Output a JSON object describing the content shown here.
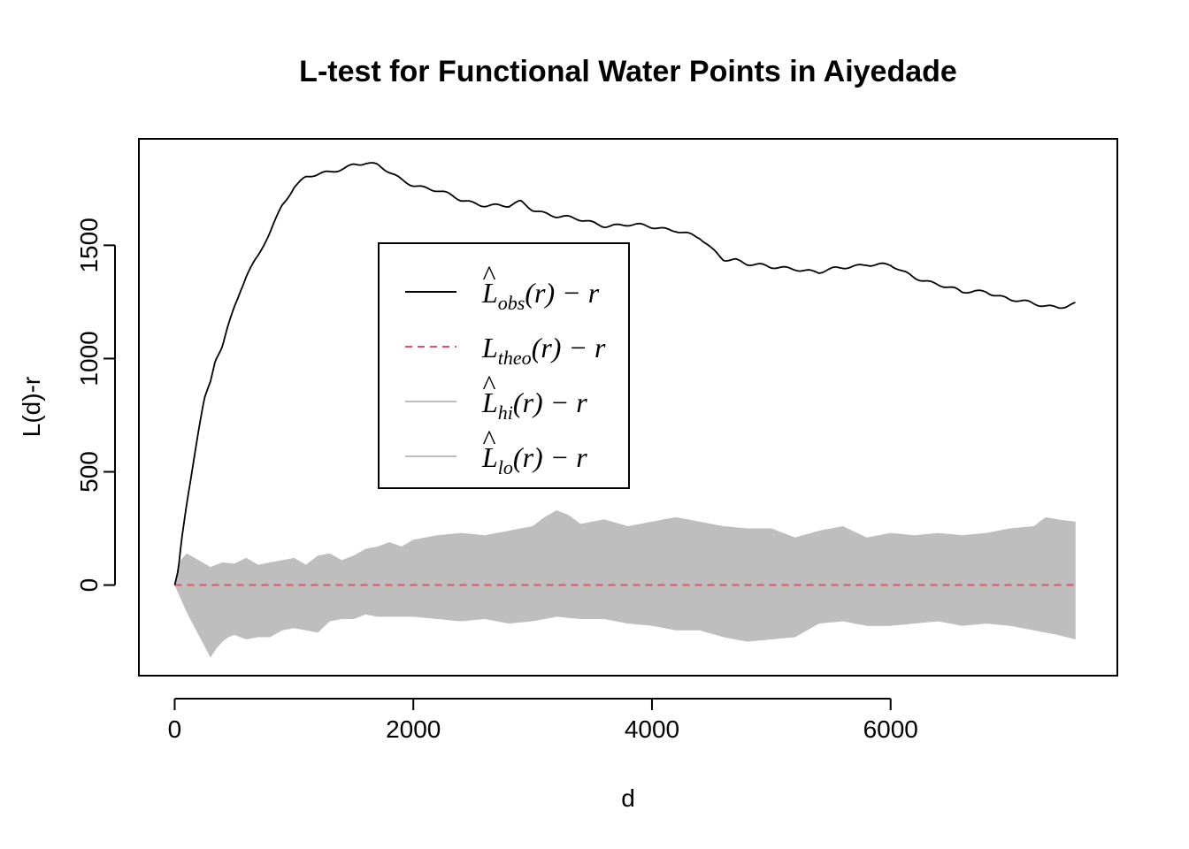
{
  "chart_data": {
    "type": "line",
    "title": "L-test for Functional Water Points in Aiyedade",
    "xlabel": "d",
    "ylabel": "L(d)-r",
    "xlim": [
      -300,
      7900
    ],
    "ylim": [
      -400,
      1970
    ],
    "x_ticks": [
      0,
      2000,
      4000,
      6000
    ],
    "x_tick_labels": [
      "0",
      "2000",
      "4000",
      "6000"
    ],
    "y_ticks": [
      0,
      500,
      1000,
      1500
    ],
    "y_tick_labels": [
      "0",
      "500",
      "1000",
      "1500"
    ],
    "grid": false,
    "legend_position": "upper-center",
    "colors": {
      "obs": "#000000",
      "theo": "#DF536B",
      "envelope": "#BEBEBE",
      "legend_band": "#BEBEBE"
    },
    "legend": [
      {
        "main": "L",
        "hat": "^",
        "sub": "obs",
        "rest": "(r) − r",
        "style": "solid",
        "color": "#000000"
      },
      {
        "main": "L",
        "hat": "",
        "sub": "theo",
        "rest": "(r) − r",
        "style": "dashed",
        "color": "#DF536B"
      },
      {
        "main": "L",
        "hat": "^",
        "sub": "hi",
        "rest": "(r) − r",
        "style": "solid",
        "color": "#BEBEBE"
      },
      {
        "main": "L",
        "hat": "^",
        "sub": "lo",
        "rest": "(r) − r",
        "style": "solid",
        "color": "#BEBEBE"
      }
    ],
    "series": [
      {
        "name": "obs",
        "x": [
          0,
          30,
          60,
          100,
          150,
          200,
          250,
          300,
          340,
          400,
          450,
          500,
          550,
          600,
          700,
          800,
          900,
          1000,
          1100,
          1200,
          1300,
          1400,
          1500,
          1600,
          1700,
          1800,
          1900,
          2000,
          2200,
          2400,
          2600,
          2800,
          2900,
          3000,
          3200,
          3400,
          3600,
          3800,
          4000,
          4200,
          4400,
          4500,
          4600,
          4700,
          4800,
          5000,
          5200,
          5400,
          5600,
          5800,
          6000,
          6100,
          6200,
          6400,
          6600,
          6800,
          7000,
          7200,
          7400,
          7550
        ],
        "y": [
          0,
          60,
          200,
          350,
          520,
          680,
          820,
          900,
          1000,
          1060,
          1150,
          1230,
          1300,
          1360,
          1450,
          1560,
          1680,
          1760,
          1800,
          1810,
          1820,
          1840,
          1860,
          1865,
          1850,
          1820,
          1790,
          1770,
          1740,
          1700,
          1680,
          1670,
          1690,
          1660,
          1630,
          1610,
          1590,
          1590,
          1580,
          1570,
          1530,
          1480,
          1440,
          1440,
          1420,
          1400,
          1400,
          1380,
          1400,
          1420,
          1410,
          1380,
          1360,
          1330,
          1290,
          1300,
          1260,
          1240,
          1230,
          1240
        ]
      },
      {
        "name": "theo",
        "x": [
          0,
          7550
        ],
        "y": [
          0,
          0
        ]
      },
      {
        "name": "hi",
        "x": [
          0,
          50,
          100,
          200,
          300,
          400,
          500,
          600,
          700,
          800,
          900,
          1000,
          1100,
          1200,
          1300,
          1400,
          1500,
          1600,
          1700,
          1800,
          1900,
          2000,
          2200,
          2400,
          2600,
          2800,
          3000,
          3100,
          3200,
          3300,
          3400,
          3600,
          3800,
          4000,
          4200,
          4400,
          4600,
          4800,
          5000,
          5200,
          5400,
          5600,
          5800,
          6000,
          6200,
          6400,
          6600,
          6800,
          7000,
          7200,
          7300,
          7400,
          7550
        ],
        "y": [
          0,
          110,
          140,
          110,
          80,
          100,
          95,
          120,
          90,
          100,
          110,
          120,
          90,
          130,
          140,
          110,
          130,
          160,
          170,
          190,
          170,
          200,
          220,
          230,
          220,
          240,
          260,
          300,
          330,
          310,
          270,
          290,
          260,
          280,
          300,
          280,
          260,
          250,
          250,
          210,
          240,
          260,
          210,
          230,
          220,
          230,
          220,
          230,
          250,
          260,
          300,
          290,
          280
        ]
      },
      {
        "name": "lo",
        "x": [
          0,
          50,
          100,
          150,
          200,
          250,
          300,
          350,
          400,
          450,
          500,
          600,
          700,
          800,
          900,
          1000,
          1100,
          1200,
          1300,
          1400,
          1500,
          1600,
          1700,
          1800,
          2000,
          2200,
          2400,
          2600,
          2800,
          3000,
          3200,
          3400,
          3600,
          3800,
          4000,
          4200,
          4400,
          4600,
          4800,
          5000,
          5200,
          5400,
          5600,
          5800,
          6000,
          6200,
          6400,
          6600,
          6800,
          7000,
          7200,
          7400,
          7550
        ],
        "y": [
          0,
          -60,
          -120,
          -170,
          -220,
          -270,
          -320,
          -280,
          -250,
          -230,
          -220,
          -240,
          -230,
          -230,
          -200,
          -190,
          -200,
          -210,
          -160,
          -150,
          -150,
          -130,
          -140,
          -140,
          -140,
          -150,
          -160,
          -150,
          -170,
          -160,
          -140,
          -150,
          -150,
          -170,
          -180,
          -200,
          -200,
          -230,
          -250,
          -240,
          -230,
          -170,
          -160,
          -180,
          -180,
          -170,
          -160,
          -180,
          -170,
          -180,
          -200,
          -220,
          -240
        ]
      }
    ]
  }
}
